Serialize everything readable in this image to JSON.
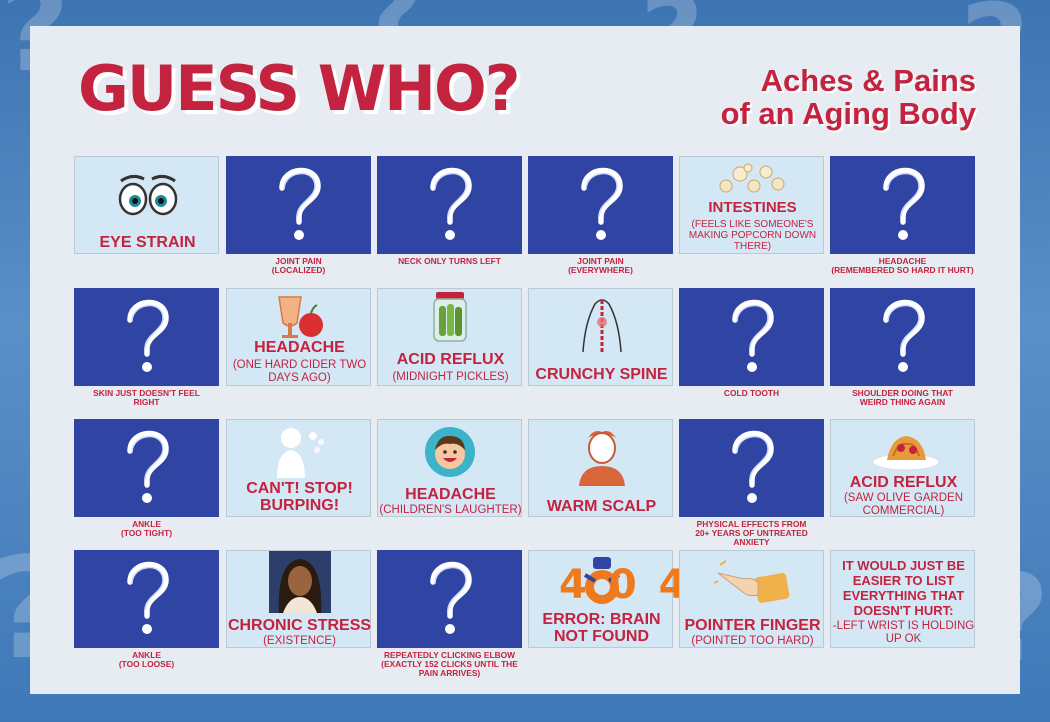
{
  "header": {
    "title": "GUESS WHO?",
    "subtitle_line1": "Aches & Pains",
    "subtitle_line2": "of an Aging Body"
  },
  "colors": {
    "accent": "#c4233f",
    "card_back": "#2f44a3",
    "card_face": "#d4e7f4",
    "panel": "#e6ecf2"
  },
  "cards": [
    {
      "kind": "face",
      "icon": "cartoon-eyes-icon",
      "title": "EYE STRAIN",
      "sub": ""
    },
    {
      "kind": "back",
      "caption": "JOINT PAIN",
      "caption2": "(LOCALIZED)"
    },
    {
      "kind": "back",
      "caption": "NECK ONLY TURNS LEFT",
      "caption2": ""
    },
    {
      "kind": "back",
      "caption": "JOINT PAIN",
      "caption2": "(EVERYWHERE)"
    },
    {
      "kind": "face",
      "icon": "popcorn-icon",
      "title": "INTESTINES",
      "sub": "(FEELS LIKE SOMEONE'S MAKING POPCORN DOWN THERE)"
    },
    {
      "kind": "back",
      "caption": "HEADACHE",
      "caption2": "(REMEMBERED SO HARD IT HURT)"
    },
    {
      "kind": "back",
      "caption": "SKIN JUST DOESN'T FEEL",
      "caption2": "RIGHT"
    },
    {
      "kind": "face",
      "icon": "cider-apple-icon",
      "title": "HEADACHE",
      "sub": "(ONE HARD CIDER TWO DAYS AGO)"
    },
    {
      "kind": "face",
      "icon": "pickle-jar-icon",
      "title": "ACID REFLUX",
      "sub": "(MIDNIGHT PICKLES)"
    },
    {
      "kind": "face",
      "icon": "spine-icon",
      "title": "CRUNCHY SPINE",
      "sub": ""
    },
    {
      "kind": "back",
      "caption": "COLD TOOTH",
      "caption2": ""
    },
    {
      "kind": "back",
      "caption": "SHOULDER DOING THAT",
      "caption2": "WEIRD THING AGAIN"
    },
    {
      "kind": "back",
      "caption": "ANKLE",
      "caption2": "(TOO TIGHT)"
    },
    {
      "kind": "face",
      "icon": "burping-person-icon",
      "title": "CAN'T! STOP! BURPING!",
      "sub": ""
    },
    {
      "kind": "face",
      "icon": "laughing-child-icon",
      "title": "HEADACHE",
      "sub": "(CHILDREN'S LAUGHTER)"
    },
    {
      "kind": "face",
      "icon": "person-head-icon",
      "title": "WARM SCALP",
      "sub": ""
    },
    {
      "kind": "back",
      "caption": "PHYSICAL EFFECTS FROM",
      "caption2": "20+ YEARS OF UNTREATED ANXIETY"
    },
    {
      "kind": "face",
      "icon": "spaghetti-icon",
      "title": "ACID REFLUX",
      "sub": "(SAW OLIVE GARDEN COMMERCIAL)"
    },
    {
      "kind": "back",
      "caption": "ANKLE",
      "caption2": "(TOO LOOSE)"
    },
    {
      "kind": "face",
      "icon": "stressed-woman-icon",
      "title": "CHRONIC STRESS",
      "sub": "(EXISTENCE)"
    },
    {
      "kind": "back",
      "caption": "REPEATEDLY CLICKING ELBOW",
      "caption2": "(EXACTLY 152 CLICKS UNTIL THE PAIN ARRIVES)"
    },
    {
      "kind": "face",
      "icon": "404-icon",
      "art": "404",
      "title": "ERROR: BRAIN NOT FOUND",
      "sub": ""
    },
    {
      "kind": "face",
      "icon": "pointing-finger-icon",
      "title": "POINTER FINGER",
      "sub": "(POINTED TOO HARD)"
    },
    {
      "kind": "face",
      "icon": "",
      "title": "IT WOULD JUST BE EASIER TO LIST EVERYTHING THAT DOESN'T HURT:",
      "sub": "-LEFT WRIST IS HOLDING UP OK"
    }
  ]
}
